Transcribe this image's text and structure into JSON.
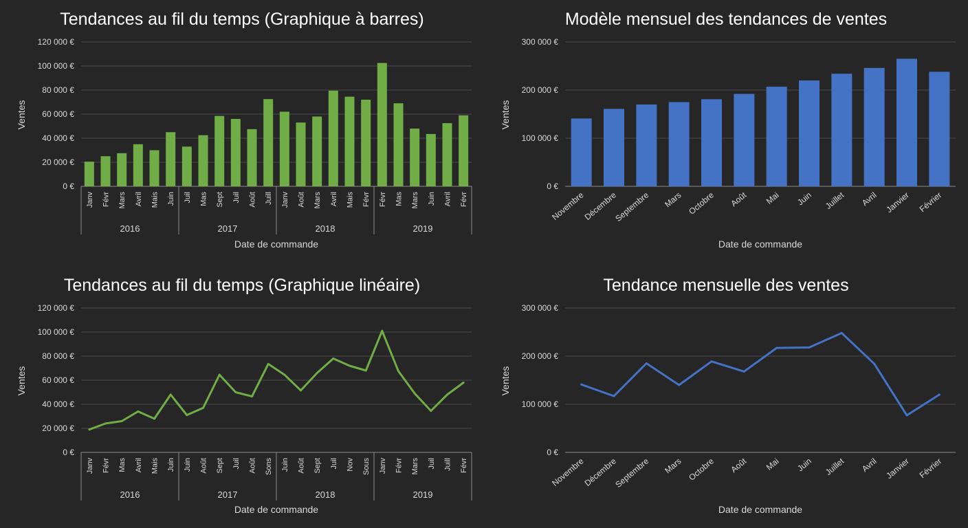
{
  "chart_data": [
    {
      "type": "bar",
      "title": "Tendances au fil du temps (Graphique à barres)",
      "xlabel": "Date de commande",
      "ylabel": "Ventes",
      "ylim": [
        0,
        120000
      ],
      "yticks": [
        "120 000 €",
        "100 000 €",
        "80 000 €",
        "60 000 €",
        "40 000 €",
        "20 000 €",
        "0 €"
      ],
      "color": "#70ad47",
      "groups": [
        {
          "year": "2016",
          "categories": [
            "Janv",
            "Févr",
            "Mars",
            "Avril",
            "Mais",
            "Juin"
          ],
          "values": [
            20500,
            25000,
            27500,
            35000,
            30000,
            45000
          ]
        },
        {
          "year": "2017",
          "categories": [
            "Juil",
            "Mas",
            "Sept",
            "Juil",
            "Août",
            "Juill"
          ],
          "values": [
            33000,
            42500,
            58500,
            56000,
            47500,
            72500
          ]
        },
        {
          "year": "2018",
          "categories": [
            "Janv",
            "Août",
            "Mars",
            "Avril",
            "Mais",
            "Févr"
          ],
          "values": [
            62000,
            53000,
            58000,
            79500,
            74500,
            72000
          ]
        },
        {
          "year": "2019",
          "categories": [
            "Févr",
            "Mas",
            "Mars",
            "Juin",
            "Avril",
            "Févr"
          ],
          "values": [
            102500,
            69000,
            48000,
            43500,
            52500,
            59000
          ]
        }
      ]
    },
    {
      "type": "bar",
      "title": "Modèle mensuel des tendances de ventes",
      "xlabel": "Date de commande",
      "ylabel": "Ventes",
      "ylim": [
        0,
        300000
      ],
      "yticks": [
        "300 000 €",
        "200 000 €",
        "100 000 €",
        "0 €"
      ],
      "color": "#4472c4",
      "categories": [
        "Novembre",
        "Décembre",
        "Septembre",
        "Mars",
        "Octobre",
        "Août",
        "Mai",
        "Juin",
        "Juillet",
        "Avril",
        "Janvier",
        "Février"
      ],
      "values": [
        141000,
        161000,
        170000,
        175000,
        181000,
        192000,
        207000,
        220000,
        234000,
        246000,
        265000,
        238000
      ]
    },
    {
      "type": "line",
      "title": "Tendances au fil du temps (Graphique linéaire)",
      "xlabel": "Date de commande",
      "ylabel": "Ventes",
      "ylim": [
        0,
        120000
      ],
      "yticks": [
        "120 000 €",
        "100 000 €",
        "80 000 €",
        "60 000 €",
        "40 000 €",
        "20 000 €",
        "0 €"
      ],
      "color": "#70ad47",
      "groups": [
        {
          "year": "2016",
          "categories": [
            "Janv",
            "Févr",
            "Mas",
            "Avril",
            "Mais",
            "Juin"
          ],
          "values": [
            19000,
            24000,
            26000,
            34000,
            28000,
            48000
          ]
        },
        {
          "year": "2017",
          "categories": [
            "Juin",
            "Août",
            "Sept",
            "Juil",
            "Août",
            "Sons"
          ],
          "values": [
            31000,
            37000,
            64500,
            50000,
            46500,
            73500
          ]
        },
        {
          "year": "2018",
          "categories": [
            "Juin",
            "Août",
            "Sept",
            "Juil",
            "Nov",
            "Sous"
          ],
          "values": [
            64500,
            51500,
            66000,
            78000,
            72000,
            68000
          ]
        },
        {
          "year": "2019",
          "categories": [
            "Janv",
            "Févr",
            "Mars",
            "Juil",
            "Juill",
            "Févr"
          ],
          "values": [
            101000,
            67500,
            49000,
            34500,
            48000,
            58000
          ]
        }
      ]
    },
    {
      "type": "line",
      "title": "Tendance mensuelle des ventes",
      "xlabel": "Date de commande",
      "ylabel": "Ventes",
      "ylim": [
        0,
        300000
      ],
      "yticks": [
        "300 000 €",
        "200 000 €",
        "100 000 €",
        "0 €"
      ],
      "color": "#4472c4",
      "categories": [
        "Novembre",
        "Décembre",
        "Septembre",
        "Mars",
        "Octobre",
        "Août",
        "Mai",
        "Juin",
        "Juillet",
        "Avril",
        "Janvier",
        "Février"
      ],
      "values": [
        141000,
        117000,
        185000,
        140000,
        189000,
        168000,
        217000,
        218000,
        248000,
        184000,
        77000,
        120000
      ]
    }
  ]
}
